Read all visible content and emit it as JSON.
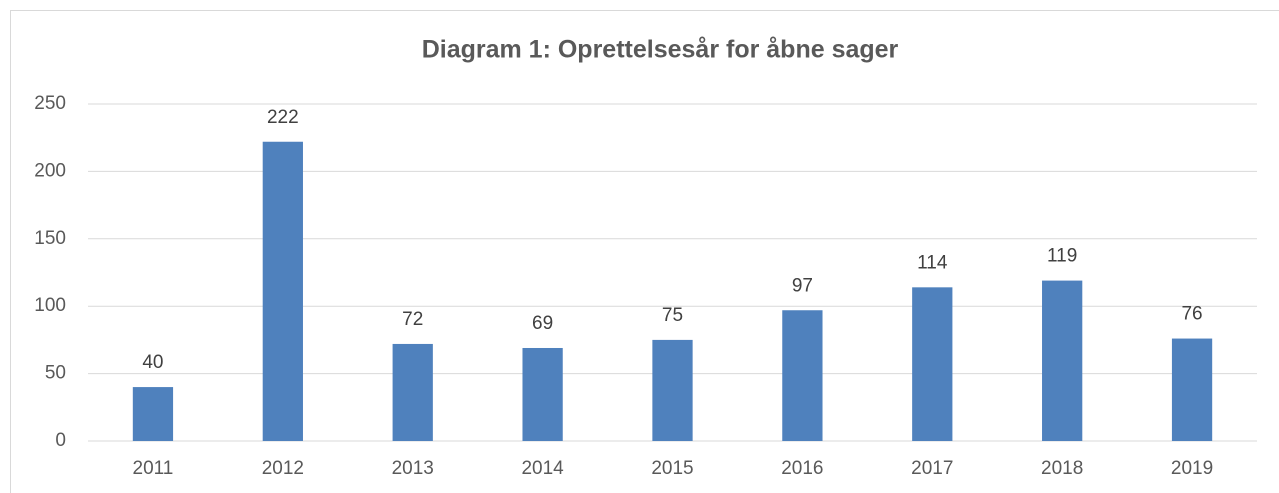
{
  "chart_data": {
    "type": "bar",
    "title": "Diagram 1: Oprettelsesår for åbne sager",
    "categories": [
      "2011",
      "2012",
      "2013",
      "2014",
      "2015",
      "2016",
      "2017",
      "2018",
      "2019"
    ],
    "values": [
      40,
      222,
      72,
      69,
      75,
      97,
      114,
      119,
      76
    ],
    "color": "#4f81bd",
    "ylim": [
      0,
      250
    ],
    "yticks": [
      0,
      50,
      100,
      150,
      200,
      250
    ],
    "grid": true
  }
}
